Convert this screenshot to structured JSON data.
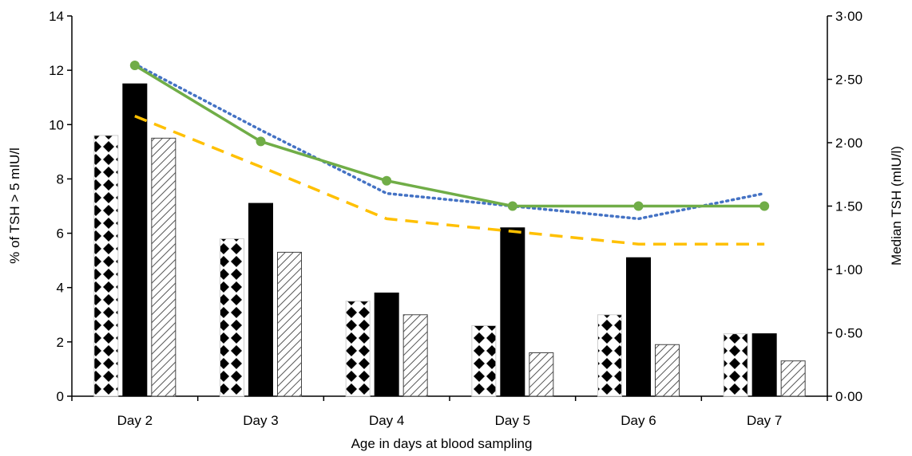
{
  "chart_data": {
    "type": "bar",
    "title": "",
    "xlabel": "Age in days at blood sampling",
    "ylabel": "% of TSH > 5 mIU/l",
    "y2label": "Median TSH (mIU/l)",
    "categories": [
      "Day 2",
      "Day 3",
      "Day 4",
      "Day 5",
      "Day 6",
      "Day 7"
    ],
    "ylim": [
      0,
      14
    ],
    "y2lim": [
      0,
      3
    ],
    "yticks": [
      "0",
      "2",
      "4",
      "6",
      "8",
      "10",
      "12",
      "14"
    ],
    "y2ticks": [
      "0·00",
      "0·50",
      "1·00",
      "1·50",
      "2·00",
      "2·50",
      "3·00"
    ],
    "grid": false,
    "legend": "none",
    "bar_series": [
      {
        "pattern": "dots",
        "values": [
          9.6,
          5.8,
          3.5,
          2.6,
          3.0,
          2.3
        ]
      },
      {
        "pattern": "solid-black",
        "values": [
          11.5,
          7.1,
          3.8,
          6.2,
          5.1,
          2.3
        ]
      },
      {
        "pattern": "diagonal-hatch",
        "values": [
          9.5,
          5.3,
          3.0,
          1.6,
          1.9,
          1.3
        ]
      }
    ],
    "line_series": [
      {
        "style": "dotted",
        "color": "#4472c4",
        "axis": "right",
        "values": [
          2.62,
          2.1,
          1.6,
          1.5,
          1.4,
          1.6
        ]
      },
      {
        "style": "solid-markers",
        "color": "#70ad47",
        "axis": "right",
        "values": [
          2.61,
          2.01,
          1.7,
          1.5,
          1.5,
          1.5
        ]
      },
      {
        "style": "dashed",
        "color": "#ffc000",
        "axis": "right",
        "values": [
          2.21,
          1.81,
          1.4,
          1.3,
          1.2,
          1.2
        ]
      }
    ]
  }
}
